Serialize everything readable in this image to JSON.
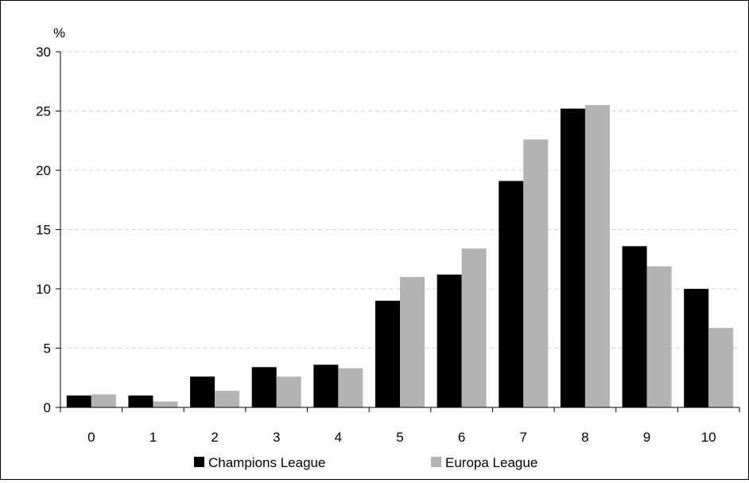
{
  "chart_data": {
    "type": "bar",
    "title": "",
    "xlabel": "",
    "ylabel": "%",
    "ylim": [
      0,
      30
    ],
    "yticks": [
      0,
      5,
      10,
      15,
      20,
      25,
      30
    ],
    "grid": "horizontal-dashed",
    "legend_position": "bottom",
    "categories": [
      "0",
      "1",
      "2",
      "3",
      "4",
      "5",
      "6",
      "7",
      "8",
      "9",
      "10"
    ],
    "series": [
      {
        "name": "Champions League",
        "color": "#000000",
        "values": [
          1.0,
          1.0,
          2.6,
          3.4,
          3.6,
          9.0,
          11.2,
          19.1,
          25.2,
          13.6,
          10.0
        ]
      },
      {
        "name": "Europa League",
        "color": "#b3b3b3",
        "values": [
          1.1,
          0.5,
          1.4,
          2.6,
          3.3,
          11.0,
          13.4,
          22.6,
          25.5,
          11.9,
          6.7
        ]
      }
    ]
  }
}
